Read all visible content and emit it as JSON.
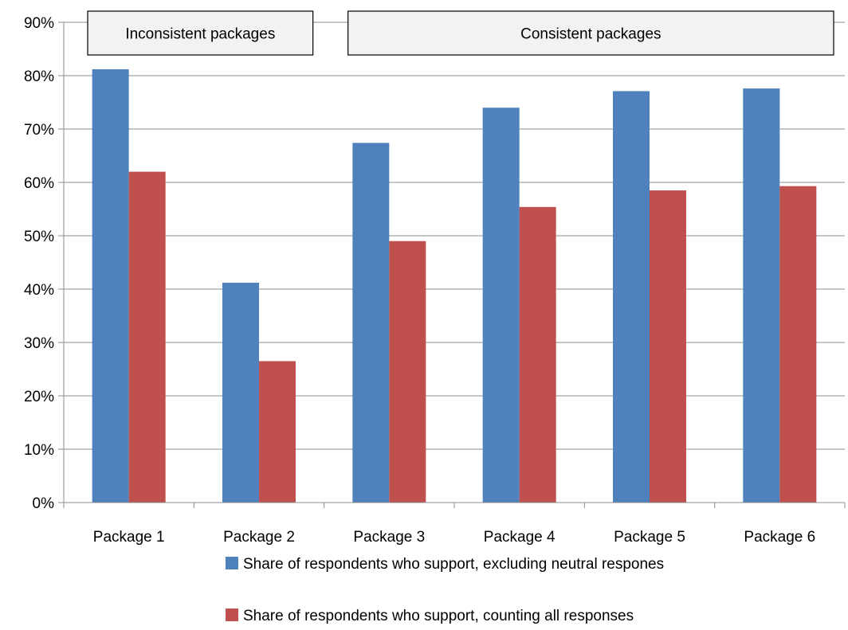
{
  "chart_data": {
    "type": "bar",
    "categories": [
      "Package 1",
      "Package 2",
      "Package 3",
      "Package 4",
      "Package 5",
      "Package 6"
    ],
    "series": [
      {
        "name": "Share of respondents who support, excluding neutral respones",
        "color": "#4F81BD",
        "values": [
          81.2,
          41.2,
          67.4,
          74.0,
          77.1,
          77.6
        ]
      },
      {
        "name": "Share of respondents who support, counting all responses",
        "color": "#C0504D",
        "values": [
          62.0,
          26.5,
          49.0,
          55.4,
          58.5,
          59.3
        ]
      }
    ],
    "ylim": [
      0,
      90
    ],
    "y_ticks": [
      0,
      10,
      20,
      30,
      40,
      50,
      60,
      70,
      80,
      90
    ],
    "y_tick_labels": [
      "0%",
      "10%",
      "20%",
      "30%",
      "40%",
      "50%",
      "60%",
      "70%",
      "80%",
      "90%"
    ],
    "grid": true,
    "legend_position": "bottom",
    "groups": [
      {
        "label": "Inconsistent packages",
        "categories": [
          "Package 1",
          "Package 2"
        ]
      },
      {
        "label": "Consistent packages",
        "categories": [
          "Package 3",
          "Package 4",
          "Package 5",
          "Package 6"
        ]
      }
    ],
    "title": "",
    "xlabel": "",
    "ylabel": ""
  }
}
